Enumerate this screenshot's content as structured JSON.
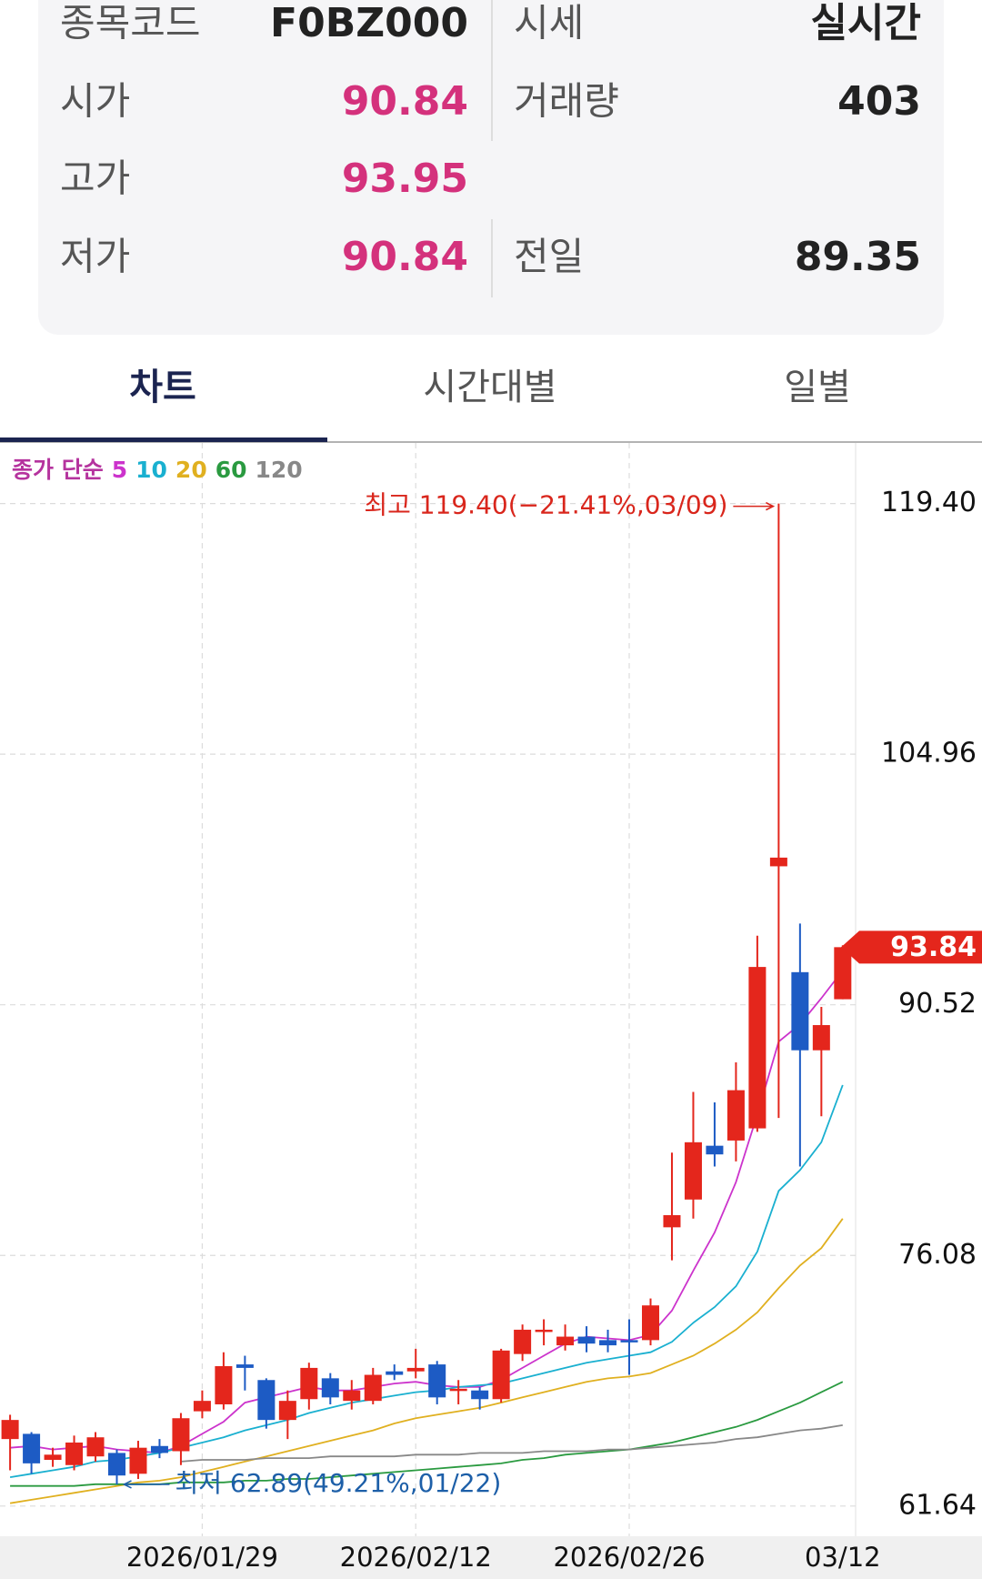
{
  "info": {
    "rows": [
      [
        {
          "label": "종목코드",
          "value": "F0BZ000"
        },
        {
          "label": "시세",
          "value": "실시간"
        }
      ],
      [
        {
          "label": "시가",
          "value": 90.84
        },
        {
          "label": "거래량",
          "value": 403
        }
      ],
      [
        {
          "label": "고가",
          "value": 93.95
        }
      ],
      [
        {
          "label": "저가",
          "value": 90.84
        },
        {
          "label": "전일",
          "value": 89.35
        }
      ]
    ]
  },
  "tabs": [
    "차트",
    "시간대별",
    "일별"
  ],
  "chart_data": {
    "type": "candlestick",
    "categories": [
      null,
      null,
      null,
      null,
      null,
      null,
      null,
      null,
      null,
      "2026/01/29",
      null,
      null,
      null,
      null,
      null,
      null,
      null,
      null,
      null,
      "2026/02/12",
      null,
      null,
      null,
      null,
      null,
      null,
      null,
      null,
      null,
      "2026/02/26",
      null,
      null,
      null,
      null,
      null,
      null,
      null,
      null,
      null,
      "03/12"
    ],
    "open": [
      65.5,
      65.8,
      64.3,
      64.0,
      64.5,
      64.7,
      63.5,
      65.1,
      64.8,
      67.1,
      67.5,
      69.8,
      68.9,
      66.6,
      67.8,
      69.0,
      67.7,
      67.7,
      69.4,
      69.4,
      69.8,
      68.3,
      68.3,
      67.8,
      70.4,
      71.7,
      70.9,
      71.4,
      71.2,
      71.2,
      71.2,
      77.7,
      79.3,
      82.4,
      82.7,
      83.4,
      98.5,
      92.4,
      87.9,
      90.84
    ],
    "high": [
      66.9,
      65.9,
      65.0,
      65.7,
      65.9,
      64.9,
      65.4,
      65.5,
      67.0,
      68.3,
      70.5,
      70.3,
      69.0,
      68.3,
      69.9,
      69.3,
      68.9,
      69.6,
      69.8,
      70.7,
      70.0,
      68.9,
      68.5,
      70.7,
      72.1,
      72.4,
      72.1,
      72.0,
      71.8,
      72.4,
      73.6,
      82.0,
      85.5,
      84.9,
      87.2,
      94.5,
      119.4,
      95.2,
      90.4,
      93.95
    ],
    "low": [
      63.7,
      63.5,
      63.9,
      63.7,
      64.2,
      62.89,
      63.2,
      64.4,
      64.0,
      66.7,
      67.2,
      68.3,
      66.1,
      65.5,
      67.2,
      67.5,
      67.2,
      67.5,
      68.9,
      69.0,
      67.5,
      67.5,
      67.2,
      67.6,
      70.0,
      70.9,
      70.6,
      70.5,
      70.5,
      69.2,
      70.9,
      75.8,
      78.2,
      81.2,
      81.5,
      83.2,
      84.0,
      81.2,
      84.1,
      90.84
    ],
    "close": [
      66.6,
      64.1,
      64.6,
      65.3,
      65.6,
      63.4,
      65.0,
      64.7,
      66.7,
      67.7,
      69.7,
      69.6,
      66.6,
      67.7,
      69.6,
      67.9,
      68.3,
      69.2,
      69.2,
      69.6,
      67.9,
      68.4,
      67.8,
      70.6,
      71.8,
      71.8,
      71.4,
      71.0,
      70.9,
      71.1,
      73.2,
      78.4,
      82.6,
      81.9,
      85.6,
      92.7,
      99.0,
      87.9,
      89.35,
      93.84
    ],
    "up_color": "#e4261c",
    "down_color": "#1d5bc4",
    "ma_title": "종가 단순",
    "ma_series": [
      {
        "name": "5",
        "color": "#cc33cc",
        "values": [
          65.0,
          65.1,
          64.9,
          65.0,
          65.1,
          64.9,
          64.8,
          64.7,
          65.1,
          65.8,
          66.5,
          67.6,
          67.9,
          68.2,
          68.5,
          68.3,
          68.3,
          68.5,
          68.7,
          68.8,
          68.6,
          68.5,
          68.5,
          68.9,
          69.6,
          70.3,
          71.0,
          71.4,
          71.3,
          71.2,
          71.5,
          72.9,
          75.2,
          77.4,
          80.3,
          84.2,
          88.4,
          89.4,
          90.9,
          92.5
        ]
      },
      {
        "name": "10",
        "color": "#1ab0d0",
        "values": [
          63.3,
          63.5,
          63.7,
          63.9,
          64.2,
          64.3,
          64.5,
          64.7,
          65.0,
          65.3,
          65.6,
          66.0,
          66.3,
          66.6,
          67.0,
          67.3,
          67.6,
          67.8,
          68.0,
          68.2,
          68.3,
          68.5,
          68.6,
          68.7,
          69.0,
          69.3,
          69.6,
          69.9,
          70.1,
          70.3,
          70.5,
          71.1,
          72.2,
          73.1,
          74.3,
          76.3,
          79.8,
          81.0,
          82.6,
          85.9
        ]
      },
      {
        "name": "20",
        "color": "#e0b020",
        "values": [
          61.8,
          62.0,
          62.2,
          62.4,
          62.6,
          62.8,
          63.0,
          63.1,
          63.3,
          63.6,
          63.9,
          64.2,
          64.5,
          64.8,
          65.1,
          65.4,
          65.7,
          66.0,
          66.4,
          66.7,
          66.9,
          67.1,
          67.3,
          67.6,
          67.9,
          68.2,
          68.5,
          68.8,
          69.0,
          69.1,
          69.3,
          69.8,
          70.3,
          71.0,
          71.8,
          72.8,
          74.2,
          75.5,
          76.5,
          78.2
        ]
      },
      {
        "name": "60",
        "color": "#2a9a40",
        "values": [
          62.8,
          62.8,
          62.8,
          62.8,
          62.9,
          62.9,
          62.9,
          62.9,
          63.0,
          63.0,
          63.0,
          63.1,
          63.1,
          63.2,
          63.2,
          63.3,
          63.4,
          63.5,
          63.6,
          63.7,
          63.8,
          63.9,
          64.0,
          64.1,
          64.3,
          64.4,
          64.6,
          64.7,
          64.8,
          64.9,
          65.1,
          65.3,
          65.6,
          65.9,
          66.2,
          66.6,
          67.1,
          67.6,
          68.2,
          68.8
        ]
      },
      {
        "name": "120",
        "color": "#888888",
        "values": [
          null,
          null,
          null,
          null,
          null,
          null,
          null,
          null,
          64.2,
          64.3,
          64.3,
          64.3,
          64.4,
          64.4,
          64.4,
          64.5,
          64.5,
          64.5,
          64.5,
          64.6,
          64.6,
          64.6,
          64.7,
          64.7,
          64.7,
          64.8,
          64.8,
          64.8,
          64.9,
          64.9,
          65.0,
          65.1,
          65.2,
          65.3,
          65.5,
          65.6,
          65.8,
          66.0,
          66.1,
          66.3
        ]
      }
    ],
    "ylim": [
      59.9,
      122.0
    ],
    "yticks": [
      61.64,
      76.08,
      90.52,
      104.96,
      {
        "value": 119.4,
        "label": "119.40"
      }
    ],
    "grid": true,
    "annotations": {
      "high": "최고 119.40(−21.41%,03/09)",
      "low": "최저 62.89(49.21%,01/22)"
    }
  }
}
